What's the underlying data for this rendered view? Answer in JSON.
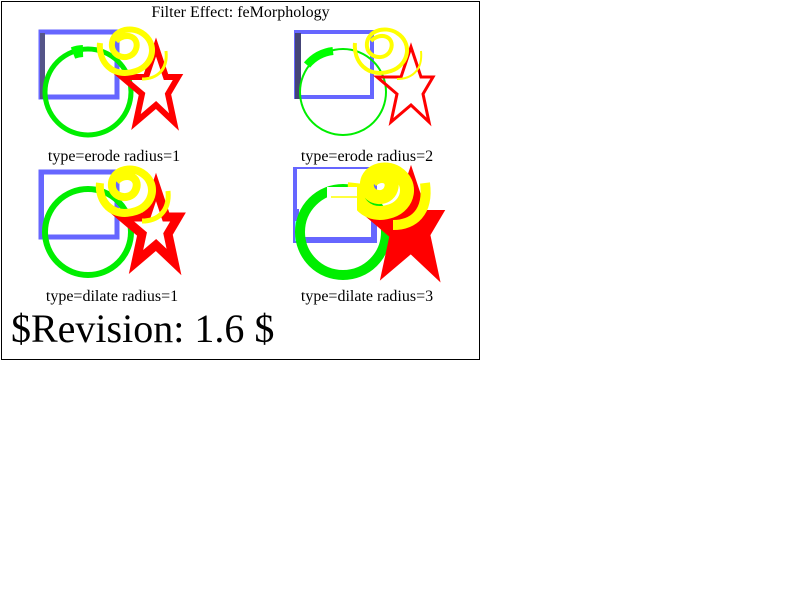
{
  "title": "Filter Effect: feMorphology",
  "panels": [
    {
      "caption": "type=erode radius=1"
    },
    {
      "caption": "type=erode radius=2"
    },
    {
      "caption": "type=dilate radius=1"
    },
    {
      "caption": "type=dilate radius=3"
    }
  ],
  "revision": "$Revision: 1.6 $",
  "colors": {
    "rect": "#6666ff",
    "circle": "#00ff00",
    "star": "#ff0000",
    "spiral": "#ffff00"
  }
}
